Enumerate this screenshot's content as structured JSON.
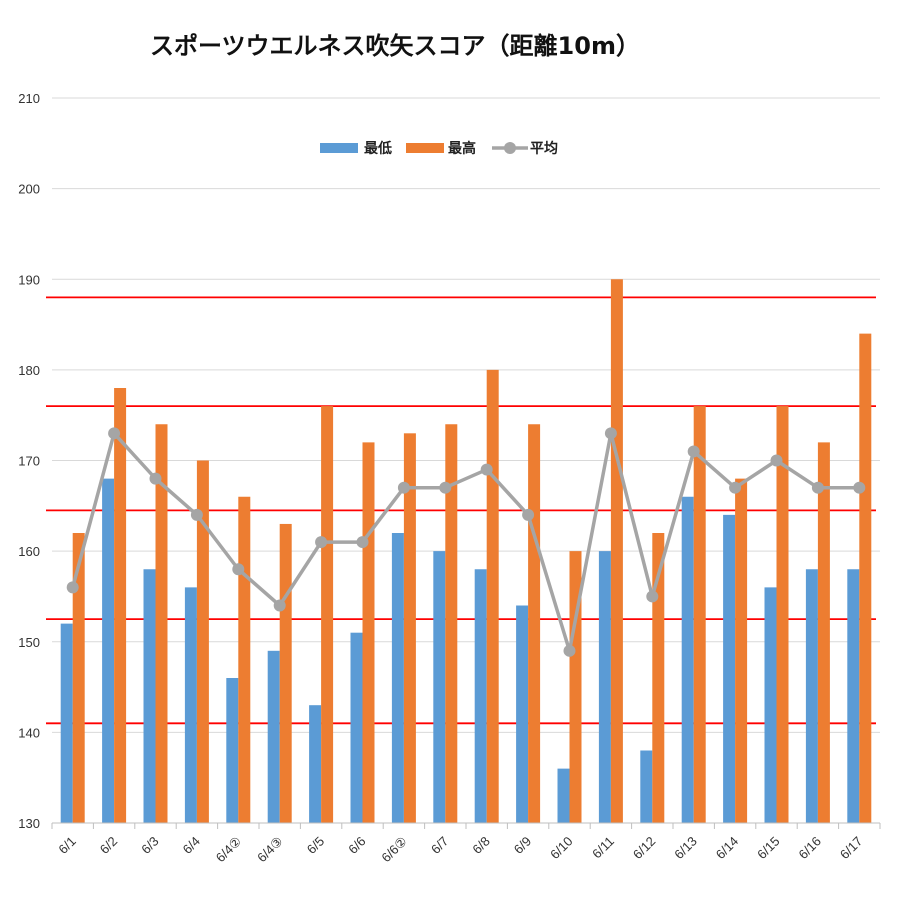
{
  "chart_data": {
    "type": "bar",
    "title": "スポーツウエルネス吹矢スコア（距離10m）",
    "categories": [
      "6/1",
      "6/2",
      "6/3",
      "6/4",
      "6/4②",
      "6/4③",
      "6/5",
      "6/6",
      "6/6②",
      "6/7",
      "6/8",
      "6/9",
      "6/10",
      "6/11",
      "6/12",
      "6/13",
      "6/14",
      "6/15",
      "6/16",
      "6/17"
    ],
    "series": [
      {
        "name": "最低",
        "kind": "bar",
        "color": "#5b9bd5",
        "values": [
          152,
          168,
          158,
          156,
          146,
          149,
          143,
          151,
          162,
          160,
          158,
          154,
          136,
          160,
          138,
          166,
          164,
          156,
          158,
          158
        ]
      },
      {
        "name": "最高",
        "kind": "bar",
        "color": "#ed7d31",
        "values": [
          162,
          178,
          174,
          170,
          166,
          163,
          176,
          172,
          173,
          174,
          180,
          174,
          160,
          190,
          162,
          176,
          168,
          176,
          172,
          184
        ]
      },
      {
        "name": "平均",
        "kind": "line",
        "color": "#a5a5a5",
        "values": [
          156,
          173,
          168,
          164,
          158,
          154,
          161,
          161,
          167,
          167,
          169,
          164,
          149,
          173,
          155,
          171,
          167,
          170,
          167,
          167
        ]
      }
    ],
    "yticks": [
      130,
      140,
      150,
      160,
      170,
      180,
      190,
      200,
      210
    ],
    "ylim": [
      130,
      210
    ],
    "grid": true,
    "legend_position": "top-center",
    "reference_lines": {
      "color": "#ff0000",
      "values": [
        141,
        152.5,
        164.5,
        176,
        188
      ]
    }
  }
}
